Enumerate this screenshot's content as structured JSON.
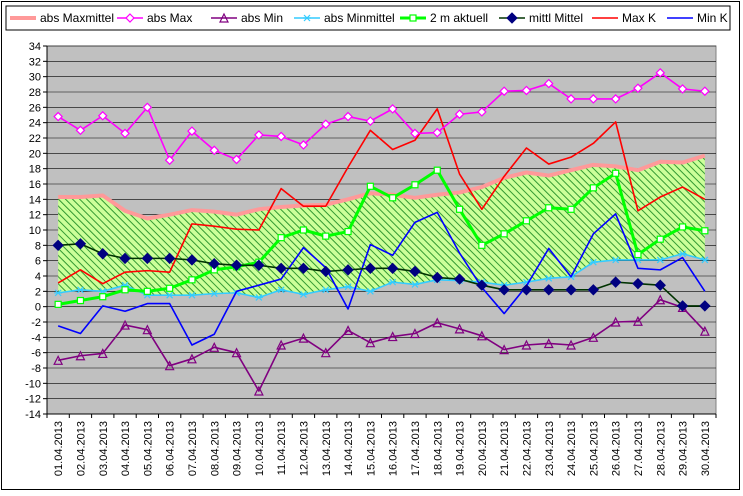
{
  "chart_data": {
    "type": "line",
    "x": [
      "01.04.2013",
      "02.04.2013",
      "03.04.2013",
      "04.04.2013",
      "05.04.2013",
      "06.04.2013",
      "07.04.2013",
      "08.04.2013",
      "09.04.2013",
      "10.04.2013",
      "11.04.2013",
      "12.04.2013",
      "13.04.2013",
      "14.04.2013",
      "15.04.2013",
      "16.04.2013",
      "17.04.2013",
      "18.04.2013",
      "19.04.2013",
      "20.04.2013",
      "21.04.2013",
      "22.04.2013",
      "23.04.2013",
      "24.04.2013",
      "25.04.2013",
      "26.04.2013",
      "27.04.2013",
      "28.04.2013",
      "29.04.2013",
      "30.04.2013"
    ],
    "ylim": [
      -14,
      34
    ],
    "yticks": [
      -14,
      -12,
      -10,
      -8,
      -6,
      -4,
      -2,
      0,
      2,
      4,
      6,
      8,
      10,
      12,
      14,
      16,
      18,
      20,
      22,
      24,
      26,
      28,
      30,
      32,
      34
    ],
    "grid": true,
    "legend_position": "top",
    "plot_background": "#c0c0c0",
    "band": {
      "upper": "abs Maxmittel",
      "lower": "abs Minmittel",
      "fill_color": "#ccff99",
      "hatch_color": "#339933"
    },
    "series": [
      {
        "name": "abs Maxmittel",
        "color": "#ff9999",
        "marker": "none",
        "width": 4,
        "values": [
          14.3,
          14.3,
          14.5,
          12.5,
          11.5,
          12.0,
          12.6,
          12.4,
          12.0,
          12.7,
          13.0,
          13.2,
          13.3,
          14.0,
          14.8,
          14.6,
          14.2,
          14.6,
          14.9,
          15.6,
          16.8,
          17.5,
          17.1,
          17.8,
          18.5,
          18.3,
          17.8,
          18.9,
          18.8,
          19.7
        ]
      },
      {
        "name": "abs Max",
        "color": "#ff00ff",
        "marker": "diamond-open",
        "values": [
          24.8,
          23.0,
          24.9,
          22.6,
          26.0,
          19.1,
          22.9,
          20.4,
          19.2,
          22.4,
          22.2,
          21.1,
          23.8,
          24.8,
          24.2,
          25.8,
          22.6,
          22.7,
          25.1,
          25.4,
          28.1,
          28.2,
          29.1,
          27.1,
          27.1,
          27.1,
          28.5,
          30.5,
          28.4,
          28.1
        ]
      },
      {
        "name": "abs Min",
        "color": "#800080",
        "marker": "triangle-open",
        "values": [
          -7.0,
          -6.4,
          -6.1,
          -2.4,
          -3.0,
          -7.7,
          -6.8,
          -5.3,
          -6.0,
          -11.0,
          -5.0,
          -4.1,
          -6.0,
          -3.1,
          -4.7,
          -3.9,
          -3.5,
          -2.1,
          -2.9,
          -3.8,
          -5.6,
          -5.0,
          -4.8,
          -5.0,
          -4.0,
          -2.0,
          -1.9,
          0.9,
          -0.1,
          -3.2
        ]
      },
      {
        "name": "abs Minmittel",
        "color": "#33ccff",
        "marker": "star",
        "values": [
          1.8,
          2.2,
          2.0,
          2.8,
          1.5,
          1.5,
          1.5,
          1.7,
          1.8,
          1.2,
          2.2,
          1.6,
          2.2,
          2.6,
          2.0,
          3.2,
          2.9,
          3.5,
          3.4,
          3.2,
          2.8,
          3.2,
          3.7,
          3.9,
          5.8,
          6.1,
          6.1,
          6.1,
          6.9,
          6.1
        ]
      },
      {
        "name": "2 m aktuell",
        "color": "#00ff00",
        "marker": "square-open",
        "width": 3,
        "values": [
          0.3,
          0.8,
          1.3,
          2.2,
          2.0,
          2.4,
          3.5,
          4.8,
          5.2,
          5.8,
          9.0,
          10.0,
          9.2,
          9.8,
          15.7,
          14.2,
          15.9,
          17.8,
          12.7,
          8.0,
          9.5,
          11.2,
          12.9,
          12.7,
          15.5,
          17.4,
          6.8,
          8.8,
          10.4,
          9.9
        ]
      },
      {
        "name": "mittl Mittel",
        "color": "#003300",
        "marker": "diamond-filled",
        "marker_color": "#000080",
        "values": [
          8.0,
          8.2,
          6.9,
          6.3,
          6.3,
          6.3,
          6.1,
          5.6,
          5.4,
          5.4,
          5.0,
          5.0,
          4.6,
          4.8,
          5.0,
          5.0,
          4.6,
          3.8,
          3.6,
          2.8,
          2.2,
          2.2,
          2.2,
          2.2,
          2.2,
          3.2,
          3.0,
          2.8,
          0.1,
          0.1
        ]
      },
      {
        "name": "Max K",
        "color": "#ff0000",
        "marker": "none",
        "values": [
          3.1,
          4.8,
          3.0,
          4.5,
          4.7,
          4.5,
          10.8,
          10.5,
          10.1,
          10.0,
          15.4,
          13.1,
          13.1,
          18.2,
          23.0,
          20.5,
          21.7,
          25.8,
          17.3,
          12.7,
          17.0,
          20.7,
          18.6,
          19.5,
          21.3,
          24.1,
          12.5,
          14.3,
          15.6,
          14.0
        ]
      },
      {
        "name": "Min K",
        "color": "#0000ff",
        "marker": "none",
        "values": [
          -2.5,
          -3.5,
          0.1,
          -0.6,
          0.4,
          0.4,
          -5.0,
          -3.6,
          2.0,
          2.8,
          3.6,
          7.7,
          5.1,
          -0.3,
          8.1,
          6.7,
          11.0,
          12.3,
          7.0,
          2.5,
          -0.9,
          2.7,
          7.6,
          3.9,
          9.5,
          12.1,
          5.0,
          4.8,
          6.4,
          2.0
        ]
      }
    ]
  }
}
